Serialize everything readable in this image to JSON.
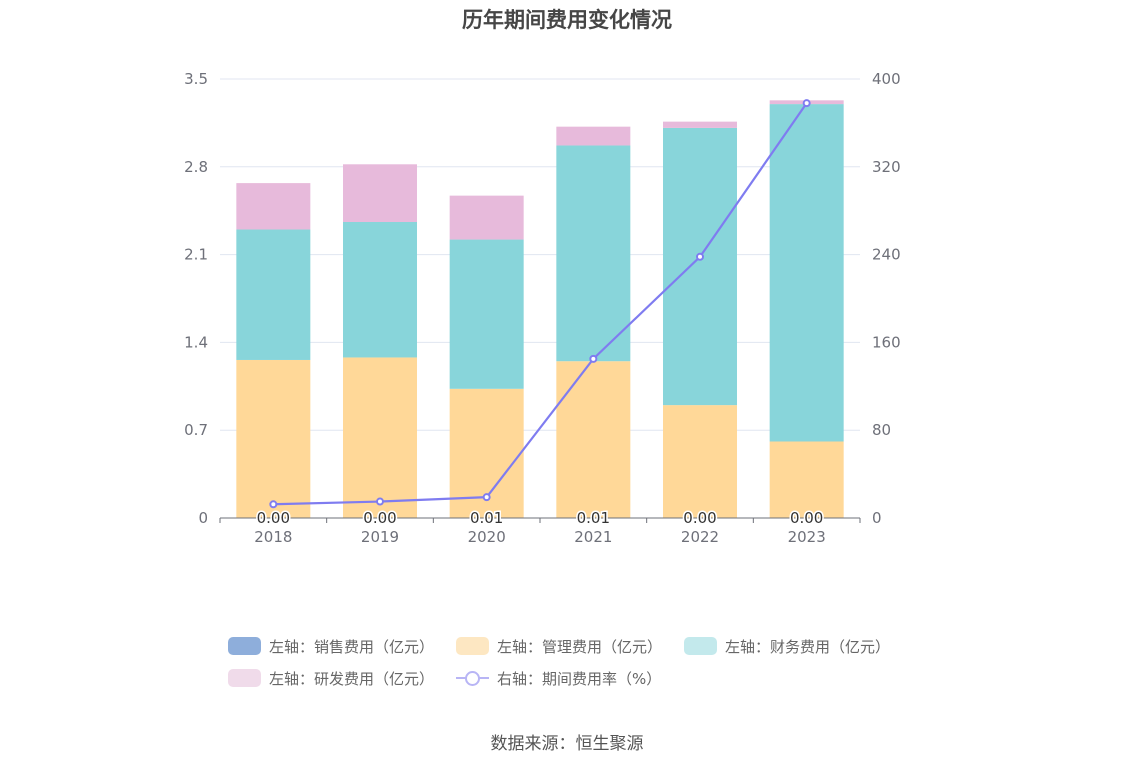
{
  "title": "历年期间费用变化情况",
  "source": "数据来源：恒生聚源",
  "legend": [
    {
      "label": "左轴：销售费用（亿元）",
      "color": "#8eaedb",
      "kind": "swatch"
    },
    {
      "label": "左轴：管理费用（亿元）",
      "color": "#fde7c2",
      "kind": "swatch"
    },
    {
      "label": "左轴：财务费用（亿元）",
      "color": "#c3e9ec",
      "kind": "swatch"
    },
    {
      "label": "左轴：研发费用（亿元）",
      "color": "#f0dbea",
      "kind": "swatch"
    },
    {
      "label": "右轴：期间费用率（%）",
      "color": "#b8b5f5",
      "kind": "line"
    }
  ],
  "chart_data": {
    "type": "bar",
    "stacked": true,
    "categories": [
      "2018",
      "2019",
      "2020",
      "2021",
      "2022",
      "2023"
    ],
    "series": [
      {
        "name": "左轴：销售费用（亿元）",
        "axis": "left",
        "color": "#8eaedb",
        "values": [
          0.0,
          0.0,
          0.0,
          0.0,
          0.0,
          0.0
        ]
      },
      {
        "name": "左轴：管理费用（亿元）",
        "axis": "left",
        "color": "#ffd898",
        "values": [
          1.26,
          1.28,
          1.03,
          1.25,
          0.9,
          0.61
        ]
      },
      {
        "name": "左轴：财务费用（亿元）",
        "axis": "left",
        "color": "#88d5da",
        "values": [
          1.04,
          1.08,
          1.19,
          1.72,
          2.21,
          2.69
        ]
      },
      {
        "name": "左轴：研发费用（亿元）",
        "axis": "left",
        "color": "#e7badb",
        "values": [
          0.37,
          0.46,
          0.35,
          0.15,
          0.05,
          0.03
        ]
      },
      {
        "name": "右轴：期间费用率（%）",
        "axis": "right",
        "type": "line",
        "color": "#7f7cf0",
        "values": [
          12.5,
          15.0,
          19.0,
          145.0,
          238.0,
          378.0
        ]
      }
    ],
    "bar_labels": [
      "0.00",
      "0.00",
      "0.01",
      "0.01",
      "0.00",
      "0.00"
    ],
    "y_left": {
      "min": 0,
      "max": 3.5,
      "ticks": [
        "0",
        "0.7",
        "1.4",
        "2.1",
        "2.8",
        "3.5"
      ]
    },
    "y_right": {
      "min": 0,
      "max": 400,
      "ticks": [
        "0",
        "80",
        "160",
        "240",
        "320",
        "400"
      ]
    },
    "grid": true,
    "legend_position": "bottom"
  }
}
